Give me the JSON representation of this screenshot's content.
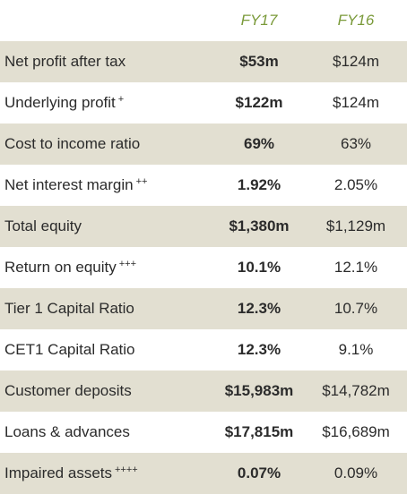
{
  "header": {
    "col_fy17": "FY17",
    "col_fy16": "FY16"
  },
  "rows": [
    {
      "label": "Net profit after tax",
      "note": "",
      "fy17": "$53m",
      "fy16": "$124m"
    },
    {
      "label": "Underlying profit",
      "note": "+",
      "fy17": "$122m",
      "fy16": "$124m"
    },
    {
      "label": "Cost to income ratio",
      "note": "",
      "fy17": "69%",
      "fy16": "63%"
    },
    {
      "label": "Net interest margin",
      "note": "++",
      "fy17": "1.92%",
      "fy16": "2.05%"
    },
    {
      "label": "Total equity",
      "note": "",
      "fy17": "$1,380m",
      "fy16": "$1,129m"
    },
    {
      "label": "Return on equity",
      "note": "+++",
      "fy17": "10.1%",
      "fy16": "12.1%"
    },
    {
      "label": "Tier 1 Capital Ratio",
      "note": "",
      "fy17": "12.3%",
      "fy16": "10.7%"
    },
    {
      "label": "CET1 Capital Ratio",
      "note": "",
      "fy17": "12.3%",
      "fy16": "9.1%"
    },
    {
      "label": "Customer deposits",
      "note": "",
      "fy17": "$15,983m",
      "fy16": "$14,782m"
    },
    {
      "label": "Loans & advances",
      "note": "",
      "fy17": "$17,815m",
      "fy16": "$16,689m"
    },
    {
      "label": "Impaired assets",
      "note": "++++",
      "fy17": "0.07%",
      "fy16": "0.09%"
    }
  ],
  "colors": {
    "shade": "#e2dfd1",
    "header_accent": "#7a9a3a"
  }
}
